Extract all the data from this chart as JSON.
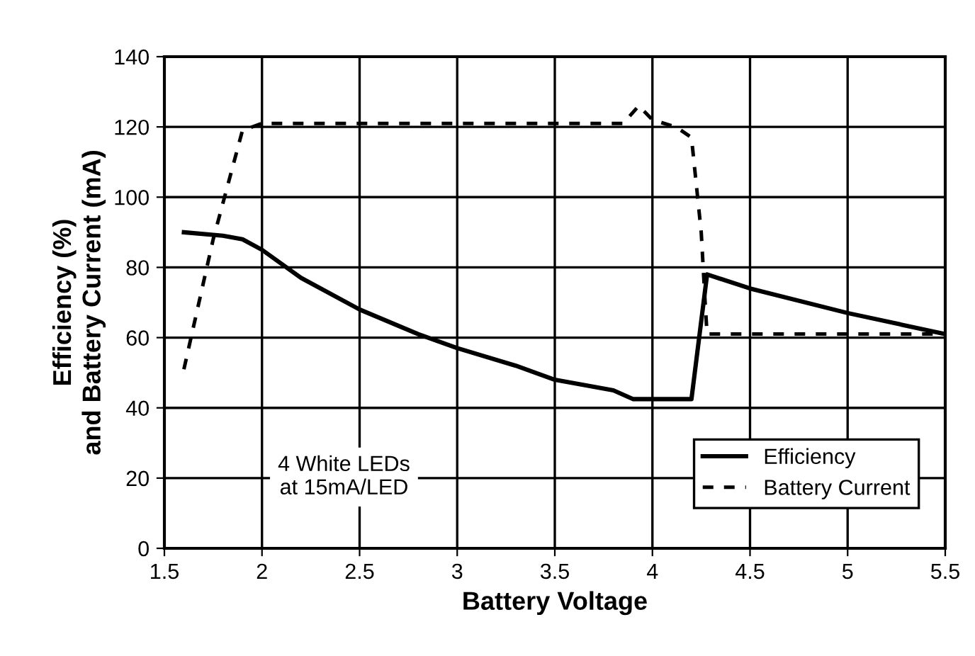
{
  "chart_data": {
    "type": "line",
    "xlabel": "Battery Voltage",
    "ylabel": "Efficiency (%)\nand Battery Current (mA)",
    "xlim": [
      1.5,
      5.5
    ],
    "xticks": [
      1.5,
      2,
      2.5,
      3,
      3.5,
      4,
      4.5,
      5,
      5.5
    ],
    "ylim": [
      0,
      140
    ],
    "yticks": [
      0,
      20,
      40,
      60,
      80,
      100,
      120,
      140
    ],
    "grid": true,
    "legend": "bottom right",
    "annotations": [
      "4 White LEDs\nat 15mA/LED"
    ],
    "series": [
      {
        "name": "Efficiency",
        "color": "#000000",
        "line_style": "solid",
        "x": [
          1.6,
          1.8,
          1.9,
          2.0,
          2.2,
          2.5,
          2.8,
          3.0,
          3.3,
          3.5,
          3.8,
          3.9,
          4.0,
          4.2,
          4.28,
          4.5,
          5.0,
          5.5
        ],
        "values": [
          90,
          89,
          88,
          85,
          77,
          68,
          61,
          57,
          52,
          48,
          45,
          42.5,
          42.5,
          42.5,
          78,
          74,
          67,
          61
        ]
      },
      {
        "name": "Battery Current",
        "color": "#000000",
        "line_style": "dashed",
        "x": [
          1.6,
          1.75,
          1.9,
          2.0,
          2.5,
          3.0,
          3.5,
          3.85,
          3.93,
          4.0,
          4.12,
          4.2,
          4.25,
          4.27,
          4.28,
          5.0,
          5.5
        ],
        "values": [
          51,
          88,
          119,
          121,
          121,
          121,
          121,
          121,
          126,
          122,
          120,
          117,
          90,
          70,
          61,
          61,
          61
        ]
      }
    ]
  }
}
